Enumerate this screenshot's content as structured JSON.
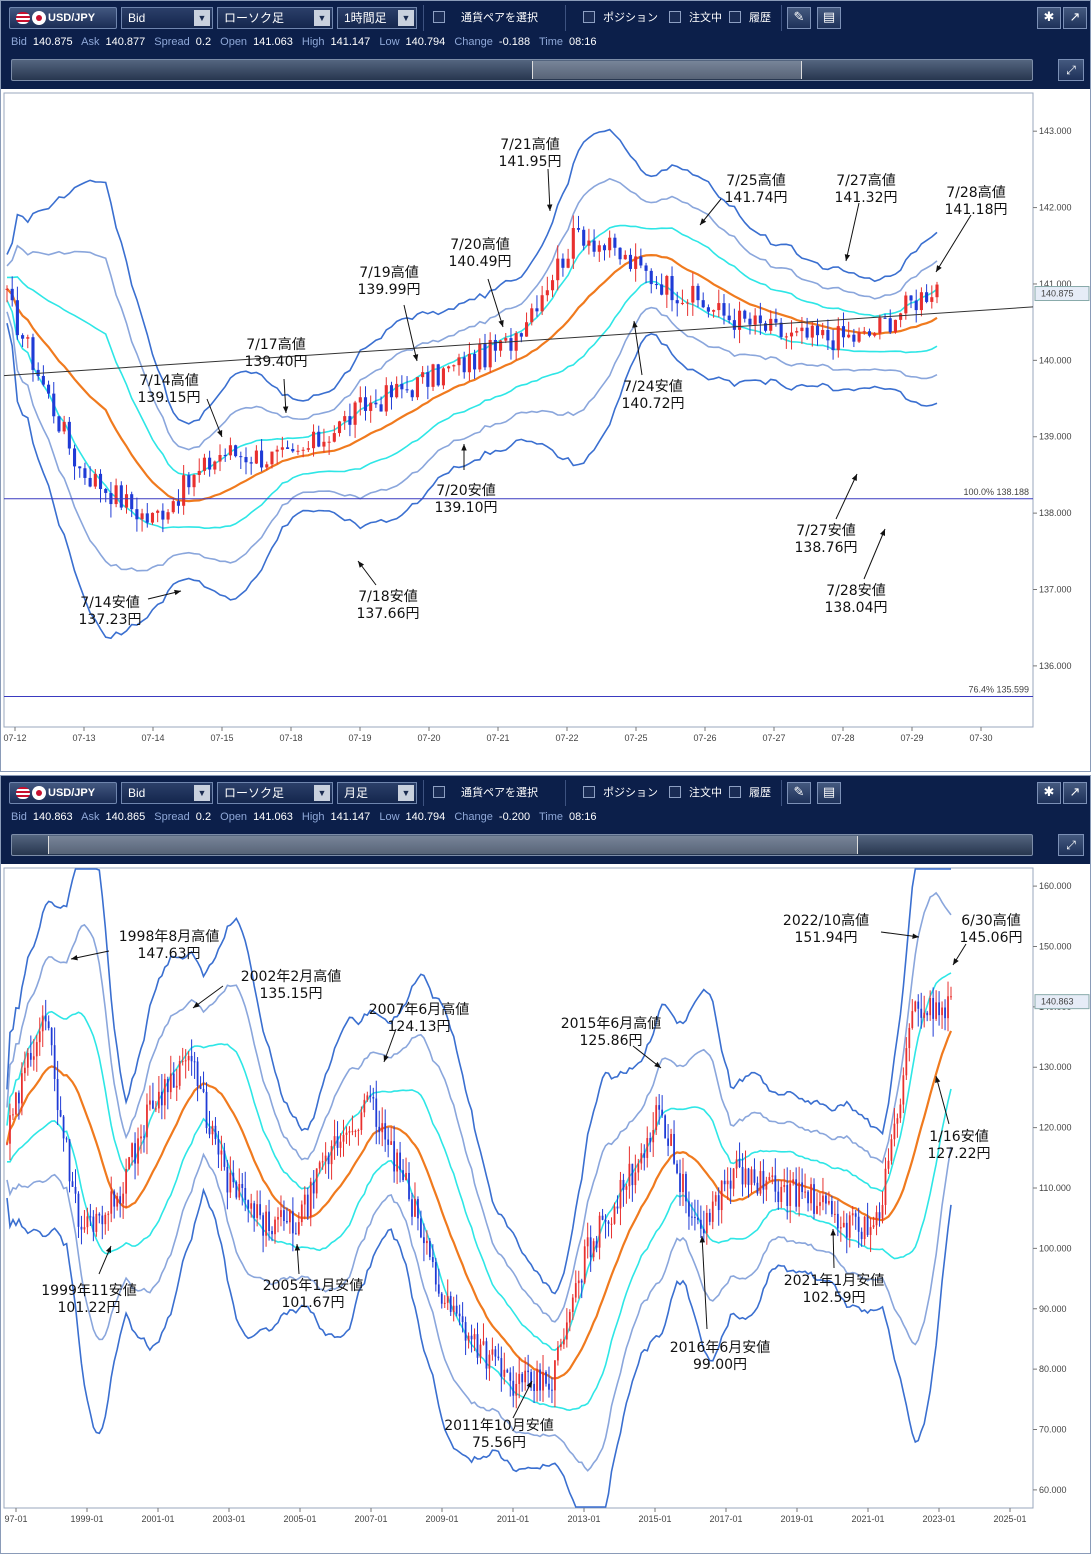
{
  "panels": [
    {
      "pair": "USD/JPY",
      "price_type": "Bid",
      "chart_style": "ローソク足",
      "timeframe": "1時間足",
      "select_pair": "通貨ペアを選択",
      "menu": [
        "ポジション",
        "注文中",
        "履歴"
      ],
      "quote": {
        "bid_label": "Bid",
        "bid": "140.875",
        "ask_label": "Ask",
        "ask": "140.877",
        "spread_label": "Spread",
        "spread": "0.2",
        "open_label": "Open",
        "open": "141.063",
        "high_label": "High",
        "high": "141.147",
        "low_label": "Low",
        "low": "140.794",
        "change_label": "Change",
        "change": "-0.188",
        "time_label": "Time",
        "time": "08:16"
      },
      "current_price_tag": "140.875",
      "fib_lines": [
        {
          "pct": "100.0%",
          "price": "138.188"
        },
        {
          "pct": "76.4%",
          "price": "135.599"
        }
      ],
      "y_ticks": [
        "143.000",
        "142.000",
        "141.000",
        "140.000",
        "139.000",
        "138.000",
        "137.000",
        "136.000"
      ],
      "x_ticks": [
        "07-12",
        "07-13",
        "07-14",
        "07-15",
        "07-18",
        "07-19",
        "07-20",
        "07-21",
        "07-22",
        "07-25",
        "07-26",
        "07-27",
        "07-28",
        "07-29",
        "07-30"
      ],
      "annotations": [
        {
          "line1": "7/21高値",
          "line2": "141.95円"
        },
        {
          "line1": "7/25高値",
          "line2": "141.74円"
        },
        {
          "line1": "7/27高値",
          "line2": "141.32円"
        },
        {
          "line1": "7/28高値",
          "line2": "141.18円"
        },
        {
          "line1": "7/20高値",
          "line2": "140.49円"
        },
        {
          "line1": "7/19高値",
          "line2": "139.99円"
        },
        {
          "line1": "7/17高値",
          "line2": "139.40円"
        },
        {
          "line1": "7/14高値",
          "line2": "139.15円"
        },
        {
          "line1": "7/24安値",
          "line2": "140.72円"
        },
        {
          "line1": "7/20安値",
          "line2": "139.10円"
        },
        {
          "line1": "7/27安値",
          "line2": "138.76円"
        },
        {
          "line1": "7/28安値",
          "line2": "138.04円"
        },
        {
          "line1": "7/14安値",
          "line2": "137.23円"
        },
        {
          "line1": "7/18安値",
          "line2": "137.66円"
        }
      ],
      "colors": {
        "up": "#e8302e",
        "down": "#1f3bd6",
        "ma": "#f07a1e",
        "band1": "#2ee6e6",
        "band2": "#8aa6dc",
        "band3": "#3a6fd0"
      }
    },
    {
      "pair": "USD/JPY",
      "price_type": "Bid",
      "chart_style": "ローソク足",
      "timeframe": "月足",
      "select_pair": "通貨ペアを選択",
      "menu": [
        "ポジション",
        "注文中",
        "履歴"
      ],
      "quote": {
        "bid_label": "Bid",
        "bid": "140.863",
        "ask_label": "Ask",
        "ask": "140.865",
        "spread_label": "Spread",
        "spread": "0.2",
        "open_label": "Open",
        "open": "141.063",
        "high_label": "High",
        "high": "141.147",
        "low_label": "Low",
        "low": "140.794",
        "change_label": "Change",
        "change": "-0.200",
        "time_label": "Time",
        "time": "08:16"
      },
      "current_price_tag": "140.863",
      "y_ticks": [
        "160.000",
        "150.000",
        "140.000",
        "130.000",
        "120.000",
        "110.000",
        "100.000",
        "90.000",
        "80.000",
        "70.000",
        "60.000"
      ],
      "x_ticks": [
        "97-01",
        "1999-01",
        "2001-01",
        "2003-01",
        "2005-01",
        "2007-01",
        "2009-01",
        "2011-01",
        "2013-01",
        "2015-01",
        "2017-01",
        "2019-01",
        "2021-01",
        "2023-01",
        "2025-01"
      ],
      "annotations": [
        {
          "line1": "1998年8月高値",
          "line2": "147.63円"
        },
        {
          "line1": "2002年2月高値",
          "line2": "135.15円"
        },
        {
          "line1": "2007年6月高値",
          "line2": "124.13円"
        },
        {
          "line1": "2015年6月高値",
          "line2": "125.86円"
        },
        {
          "line1": "2022/10高値",
          "line2": "151.94円"
        },
        {
          "line1": "6/30高値",
          "line2": "145.06円"
        },
        {
          "line1": "1/16安値",
          "line2": "127.22円"
        },
        {
          "line1": "1999年11安値",
          "line2": "101.22円"
        },
        {
          "line1": "2005年1月安値",
          "line2": "101.67円"
        },
        {
          "line1": "2011年10月安値",
          "line2": "75.56円"
        },
        {
          "line1": "2016年6月安値",
          "line2": "99.00円"
        },
        {
          "line1": "2021年1月安値",
          "line2": "102.59円"
        }
      ]
    }
  ],
  "chart_data": [
    {
      "type": "candlestick",
      "xlabel": "",
      "ylabel": "",
      "ylim": [
        135.2,
        143.5
      ],
      "x": [
        "07-12",
        "07-13",
        "07-14",
        "07-15",
        "07-18",
        "07-19",
        "07-20",
        "07-21",
        "07-22",
        "07-25",
        "07-26",
        "07-27",
        "07-28",
        "07-29"
      ],
      "close_path_approx": [
        140.8,
        138.6,
        137.9,
        138.8,
        138.7,
        139.4,
        139.8,
        140.2,
        141.7,
        141.1,
        140.6,
        140.3,
        140.3,
        141.0
      ],
      "highs_lows": [
        {
          "date": "7/14",
          "high": 139.15,
          "low": 137.23
        },
        {
          "date": "7/17",
          "high": 139.4
        },
        {
          "date": "7/18",
          "low": 137.66
        },
        {
          "date": "7/19",
          "high": 139.99
        },
        {
          "date": "7/20",
          "high": 140.49,
          "low": 139.1
        },
        {
          "date": "7/21",
          "high": 141.95
        },
        {
          "date": "7/24",
          "low": 140.72
        },
        {
          "date": "7/25",
          "high": 141.74
        },
        {
          "date": "7/27",
          "high": 141.32,
          "low": 138.76
        },
        {
          "date": "7/28",
          "high": 141.18,
          "low": 138.04
        }
      ],
      "overlays": [
        "moving average",
        "bollinger bands ±1σ/±2σ/±3σ",
        "trend line"
      ]
    },
    {
      "type": "candlestick",
      "xlabel": "",
      "ylabel": "",
      "ylim": [
        57,
        163
      ],
      "x": [
        "1997",
        "1998",
        "1999",
        "2000",
        "2001",
        "2002",
        "2003",
        "2004",
        "2005",
        "2006",
        "2007",
        "2008",
        "2009",
        "2010",
        "2011",
        "2012",
        "2013",
        "2014",
        "2015",
        "2016",
        "2017",
        "2018",
        "2019",
        "2020",
        "2021",
        "2022",
        "2023"
      ],
      "close_path_approx": [
        118,
        140,
        103,
        108,
        124,
        132,
        112,
        104,
        104,
        117,
        124,
        110,
        92,
        84,
        77,
        78,
        100,
        110,
        123,
        102,
        113,
        110,
        109,
        104,
        104,
        140,
        140
      ],
      "highs_lows": [
        {
          "date": "1998-08",
          "high": 147.63
        },
        {
          "date": "1999-11",
          "low": 101.22
        },
        {
          "date": "2002-02",
          "high": 135.15
        },
        {
          "date": "2005-01",
          "low": 101.67
        },
        {
          "date": "2007-06",
          "high": 124.13
        },
        {
          "date": "2011-10",
          "low": 75.56
        },
        {
          "date": "2015-06",
          "high": 125.86
        },
        {
          "date": "2016-06",
          "low": 99.0
        },
        {
          "date": "2021-01",
          "low": 102.59
        },
        {
          "date": "2022-10",
          "high": 151.94
        },
        {
          "date": "2023-01-16",
          "low": 127.22
        },
        {
          "date": "2023-06-30",
          "high": 145.06
        }
      ],
      "overlays": [
        "moving average",
        "bollinger bands ±1σ/±2σ/±3σ"
      ]
    }
  ]
}
